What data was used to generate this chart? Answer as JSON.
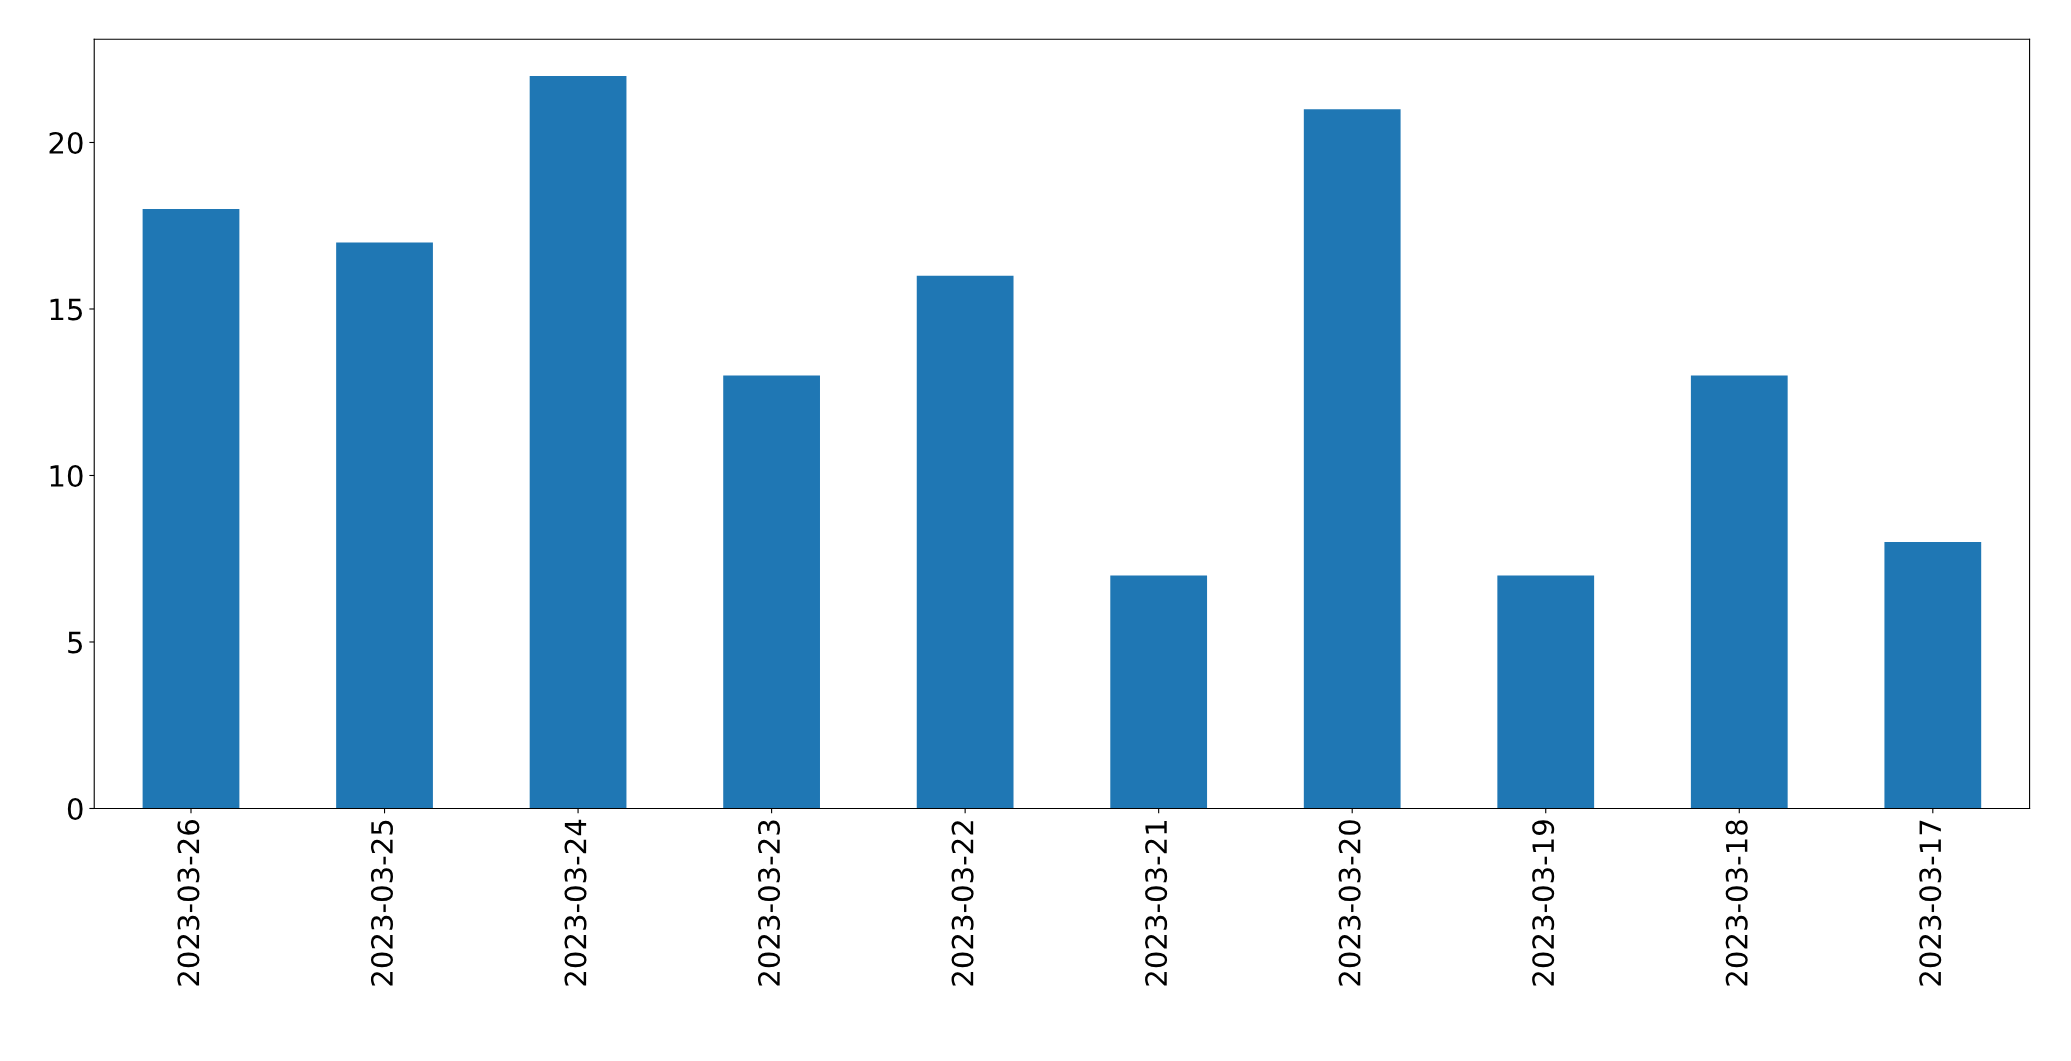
{
  "chart_data": {
    "type": "bar",
    "categories": [
      "2023-03-26",
      "2023-03-25",
      "2023-03-24",
      "2023-03-23",
      "2023-03-22",
      "2023-03-21",
      "2023-03-20",
      "2023-03-19",
      "2023-03-18",
      "2023-03-17"
    ],
    "values": [
      18,
      17,
      22,
      13,
      16,
      7,
      21,
      7,
      13,
      8
    ],
    "color": "#1f77b4",
    "ylim": [
      0,
      23.1
    ],
    "yticks": [
      0,
      5,
      10,
      15,
      20
    ],
    "grid": false
  }
}
